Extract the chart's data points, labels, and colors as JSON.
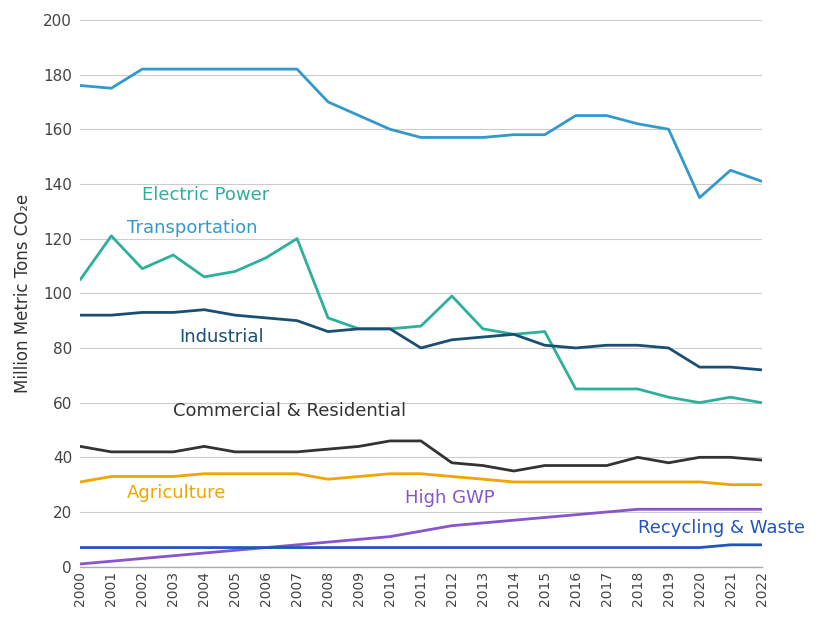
{
  "years": [
    2000,
    2001,
    2002,
    2003,
    2004,
    2005,
    2006,
    2007,
    2008,
    2009,
    2010,
    2011,
    2012,
    2013,
    2014,
    2015,
    2016,
    2017,
    2018,
    2019,
    2020,
    2021,
    2022
  ],
  "Transportation": [
    176,
    175,
    182,
    182,
    182,
    182,
    182,
    182,
    170,
    165,
    160,
    157,
    157,
    157,
    158,
    158,
    165,
    165,
    162,
    160,
    135,
    145,
    141
  ],
  "Electric_Power": [
    105,
    121,
    109,
    114,
    106,
    108,
    113,
    120,
    91,
    87,
    87,
    88,
    99,
    87,
    85,
    86,
    65,
    65,
    65,
    62,
    60,
    62,
    60
  ],
  "Industrial": [
    92,
    92,
    93,
    93,
    94,
    92,
    91,
    90,
    86,
    87,
    87,
    80,
    83,
    84,
    85,
    81,
    80,
    81,
    81,
    80,
    73,
    73,
    72
  ],
  "Commercial_Residential": [
    44,
    42,
    42,
    42,
    44,
    42,
    42,
    42,
    43,
    44,
    46,
    46,
    38,
    37,
    35,
    37,
    37,
    37,
    40,
    38,
    40,
    40,
    39
  ],
  "Agriculture": [
    31,
    33,
    33,
    33,
    34,
    34,
    34,
    34,
    32,
    33,
    34,
    34,
    33,
    32,
    31,
    31,
    31,
    31,
    31,
    31,
    31,
    30,
    30
  ],
  "High_GWP": [
    1,
    2,
    3,
    4,
    5,
    6,
    7,
    8,
    9,
    10,
    11,
    13,
    15,
    16,
    17,
    18,
    19,
    20,
    21,
    21,
    21,
    21,
    21
  ],
  "Recycling_Waste": [
    7,
    7,
    7,
    7,
    7,
    7,
    7,
    7,
    7,
    7,
    7,
    7,
    7,
    7,
    7,
    7,
    7,
    7,
    7,
    7,
    7,
    8,
    8
  ],
  "series_colors": {
    "Transportation": "#3399CC",
    "Electric_Power": "#2DB09A",
    "Industrial": "#1B4F72",
    "Commercial_Residential": "#333333",
    "Agriculture": "#F0A500",
    "High_GWP": "#8855CC",
    "Recycling_Waste": "#2255BB"
  },
  "series_labels": {
    "Transportation": "Transportation",
    "Electric_Power": "Electric Power",
    "Industrial": "Industrial",
    "Commercial_Residential": "Commercial & Residential",
    "Agriculture": "Agriculture",
    "High_GWP": "High GWP",
    "Recycling_Waste": "Recycling & Waste"
  },
  "label_configs": {
    "Transportation": [
      2001.5,
      124,
      13
    ],
    "Electric_Power": [
      2002.0,
      136,
      13
    ],
    "Industrial": [
      2003.2,
      84,
      13
    ],
    "Commercial_Residential": [
      2003.0,
      57,
      13
    ],
    "Agriculture": [
      2001.5,
      27,
      13
    ],
    "High_GWP": [
      2010.5,
      25,
      13
    ],
    "Recycling_Waste": [
      2018.0,
      14,
      13
    ]
  },
  "ylabel": "Million Metric Tons CO₂e",
  "ylim": [
    0,
    200
  ],
  "yticks": [
    0,
    20,
    40,
    60,
    80,
    100,
    120,
    140,
    160,
    180,
    200
  ],
  "background_color": "#FFFFFF",
  "grid_color": "#CCCCCC",
  "line_width": 2.0
}
